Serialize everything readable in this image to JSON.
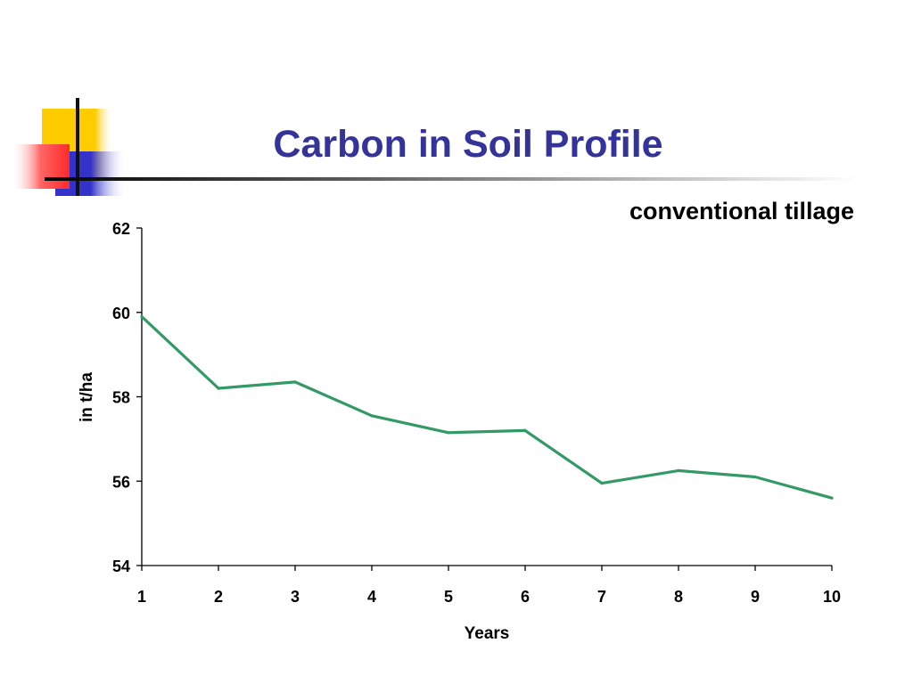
{
  "slide": {
    "title": "Carbon in Soil Profile",
    "subtitle": "conventional tillage"
  },
  "colors": {
    "title": "#333399",
    "series_line": "#339966",
    "deco_yellow": "#ffcc00",
    "deco_red": "#ff3333",
    "deco_blue": "#3333cc"
  },
  "chart_data": {
    "type": "line",
    "xlabel": "Years",
    "ylabel": "in t/ha",
    "x": [
      1,
      2,
      3,
      4,
      5,
      6,
      7,
      8,
      9,
      10
    ],
    "series": [
      {
        "values": [
          59.9,
          58.2,
          58.35,
          57.55,
          57.15,
          57.2,
          55.95,
          56.25,
          56.1,
          55.6
        ]
      }
    ],
    "xlim": [
      1,
      10
    ],
    "ylim": [
      54,
      62
    ],
    "yticks": [
      54,
      56,
      58,
      60,
      62
    ],
    "xticks": [
      1,
      2,
      3,
      4,
      5,
      6,
      7,
      8,
      9,
      10
    ],
    "grid": false,
    "legend": "none"
  }
}
